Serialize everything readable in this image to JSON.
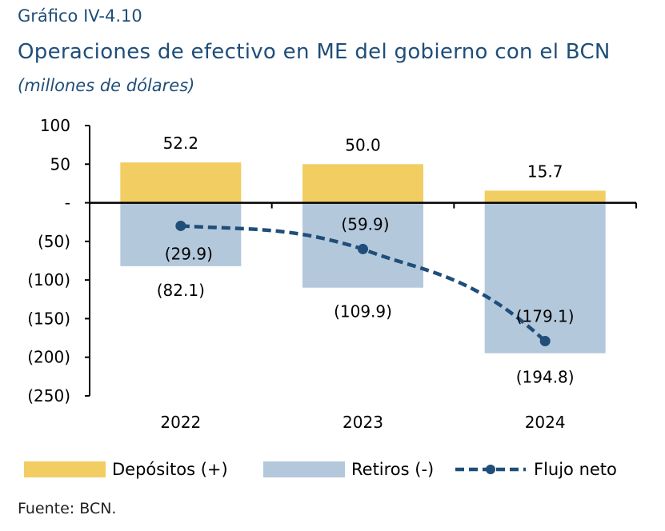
{
  "header": {
    "label": "Gráfico IV-4.10",
    "title": "Operaciones de efectivo en ME del gobierno con el BCN",
    "subtitle": "(millones de dólares)"
  },
  "footer": {
    "source": "Fuente: BCN."
  },
  "colors": {
    "depositos": "#f2cd62",
    "retiros": "#b4c8dc",
    "flujo": "#1f4e79",
    "axis": "#000000"
  },
  "chart_data": {
    "type": "bar",
    "categories": [
      "2022",
      "2023",
      "2024"
    ],
    "series": [
      {
        "name": "Depósitos (+)",
        "kind": "bar",
        "values": [
          52.2,
          50.0,
          15.7
        ],
        "labels": [
          "52.2",
          "50.0",
          "15.7"
        ]
      },
      {
        "name": "Retiros (-)",
        "kind": "bar",
        "values": [
          -82.1,
          -109.9,
          -194.8
        ],
        "labels": [
          "(82.1)",
          "(109.9)",
          "(194.8)"
        ]
      },
      {
        "name": "Flujo neto",
        "kind": "line",
        "style": "dashed",
        "marker": "circle",
        "values": [
          -29.9,
          -59.9,
          -179.1
        ],
        "labels": [
          "(29.9)",
          "(59.9)",
          "(179.1)"
        ]
      }
    ],
    "ylim": [
      -250,
      100
    ],
    "yticks": [
      100,
      50,
      0,
      -50,
      -100,
      -150,
      -200,
      -250
    ],
    "ytick_labels": [
      "100",
      "50",
      "-",
      "(50)",
      "(100)",
      "(150)",
      "(200)",
      "(250)"
    ],
    "grid": false,
    "legend_position": "bottom"
  }
}
